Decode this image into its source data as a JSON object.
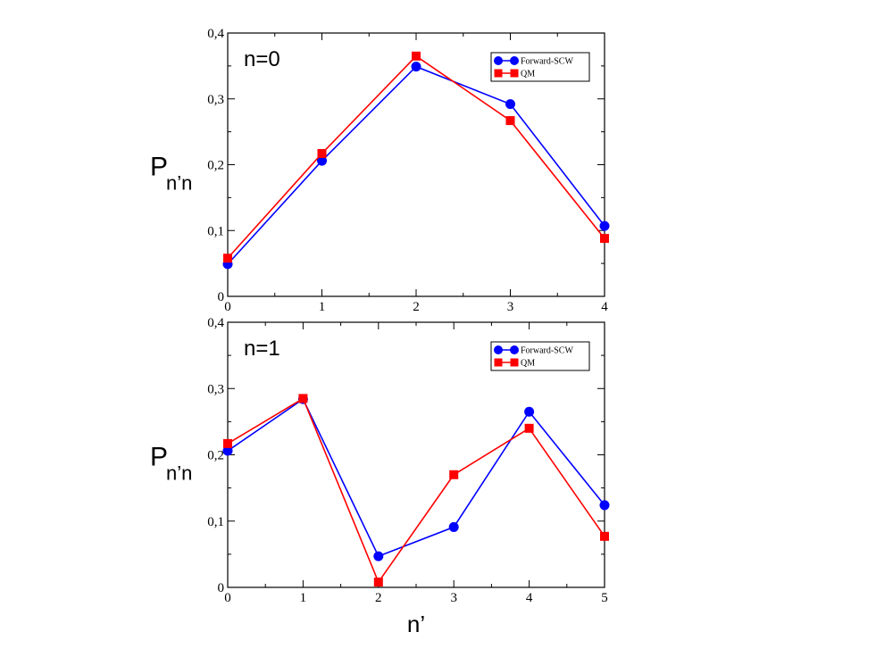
{
  "chart_data": [
    {
      "type": "line",
      "annotation": "n=0",
      "ylabel": "P",
      "ylabel_sub": "n’n",
      "xlabel": "",
      "xlim": [
        0,
        4
      ],
      "ylim": [
        0,
        0.4
      ],
      "x_ticks": [
        0,
        1,
        2,
        3,
        4
      ],
      "x_tick_labels": [
        "0",
        "1",
        "2",
        "3",
        "4"
      ],
      "y_ticks": [
        0,
        0.1,
        0.2,
        0.3,
        0.4
      ],
      "y_tick_labels": [
        "0",
        "0,1",
        "0,2",
        "0,3",
        "0,4"
      ],
      "legend_position": "top-right",
      "grid": false,
      "series": [
        {
          "name": "Forward-SCW",
          "color": "#0000ff",
          "marker": "circle",
          "x": [
            0,
            1,
            2,
            3,
            4
          ],
          "y": [
            0.049,
            0.206,
            0.349,
            0.292,
            0.107
          ]
        },
        {
          "name": "QM",
          "color": "#ff0000",
          "marker": "square",
          "x": [
            0,
            1,
            2,
            3,
            4
          ],
          "y": [
            0.058,
            0.217,
            0.365,
            0.267,
            0.088
          ]
        }
      ]
    },
    {
      "type": "line",
      "annotation": "n=1",
      "ylabel": "P",
      "ylabel_sub": "n’n",
      "xlabel": "n’",
      "xlim": [
        0,
        5
      ],
      "ylim": [
        0,
        0.4
      ],
      "x_ticks": [
        0,
        1,
        2,
        3,
        4,
        5
      ],
      "x_tick_labels": [
        "0",
        "1",
        "2",
        "3",
        "4",
        "5"
      ],
      "y_ticks": [
        0,
        0.1,
        0.2,
        0.3,
        0.4
      ],
      "y_tick_labels": [
        "0",
        "0,1",
        "0,2",
        "0,3",
        "0,4"
      ],
      "legend_position": "top-right",
      "grid": false,
      "series": [
        {
          "name": "Forward-SCW",
          "color": "#0000ff",
          "marker": "circle",
          "x": [
            0,
            1,
            2,
            3,
            4,
            5
          ],
          "y": [
            0.206,
            0.284,
            0.047,
            0.091,
            0.265,
            0.124
          ]
        },
        {
          "name": "QM",
          "color": "#ff0000",
          "marker": "square",
          "x": [
            0,
            1,
            2,
            3,
            4,
            5
          ],
          "y": [
            0.217,
            0.285,
            0.008,
            0.17,
            0.24,
            0.077
          ]
        }
      ]
    }
  ]
}
